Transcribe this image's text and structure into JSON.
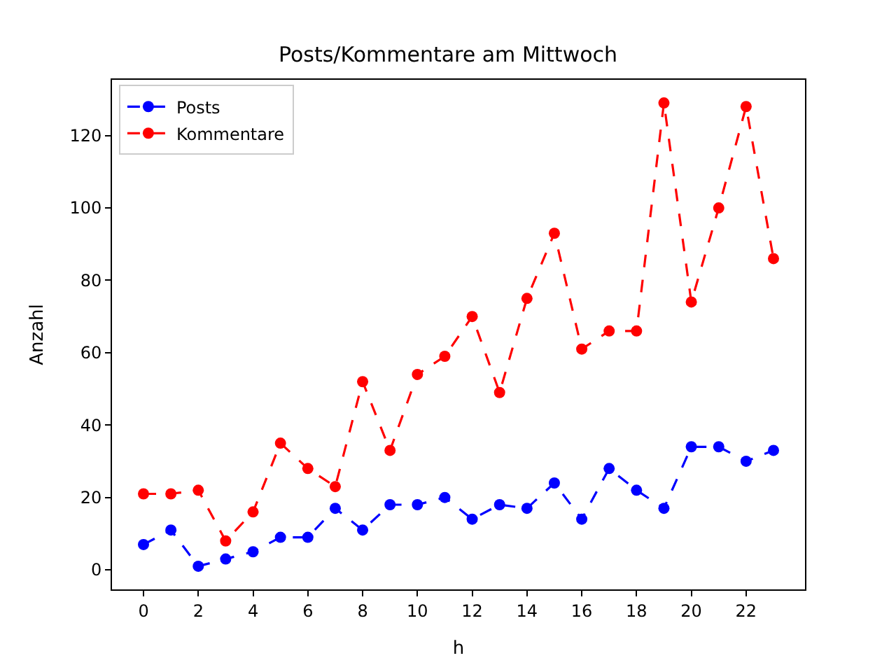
{
  "chart_data": {
    "type": "line",
    "title": "Posts/Kommentare am Mittwoch",
    "xlabel": "h",
    "ylabel": "Anzahl",
    "x": [
      0,
      1,
      2,
      3,
      4,
      5,
      6,
      7,
      8,
      9,
      10,
      11,
      12,
      13,
      14,
      15,
      16,
      17,
      18,
      19,
      20,
      21,
      22,
      23
    ],
    "series": [
      {
        "name": "Posts",
        "color": "#0000ff",
        "values": [
          7,
          11,
          1,
          3,
          5,
          9,
          9,
          17,
          11,
          18,
          18,
          20,
          14,
          18,
          17,
          24,
          14,
          28,
          22,
          17,
          34,
          34,
          30,
          33
        ]
      },
      {
        "name": "Kommentare",
        "color": "#ff0000",
        "values": [
          21,
          21,
          22,
          8,
          16,
          35,
          28,
          23,
          52,
          33,
          54,
          59,
          70,
          49,
          75,
          93,
          61,
          66,
          66,
          129,
          74,
          100,
          128,
          86
        ]
      }
    ],
    "xlim": [
      -1.15,
      24.15
    ],
    "xticks": [
      0,
      2,
      4,
      6,
      8,
      10,
      12,
      14,
      16,
      18,
      20,
      22
    ],
    "ylim": [
      -5.4,
      135.4
    ],
    "yticks": [
      0,
      20,
      40,
      60,
      80,
      100,
      120
    ],
    "legend": "top left",
    "marker": "circle",
    "line_style": "dashed"
  }
}
